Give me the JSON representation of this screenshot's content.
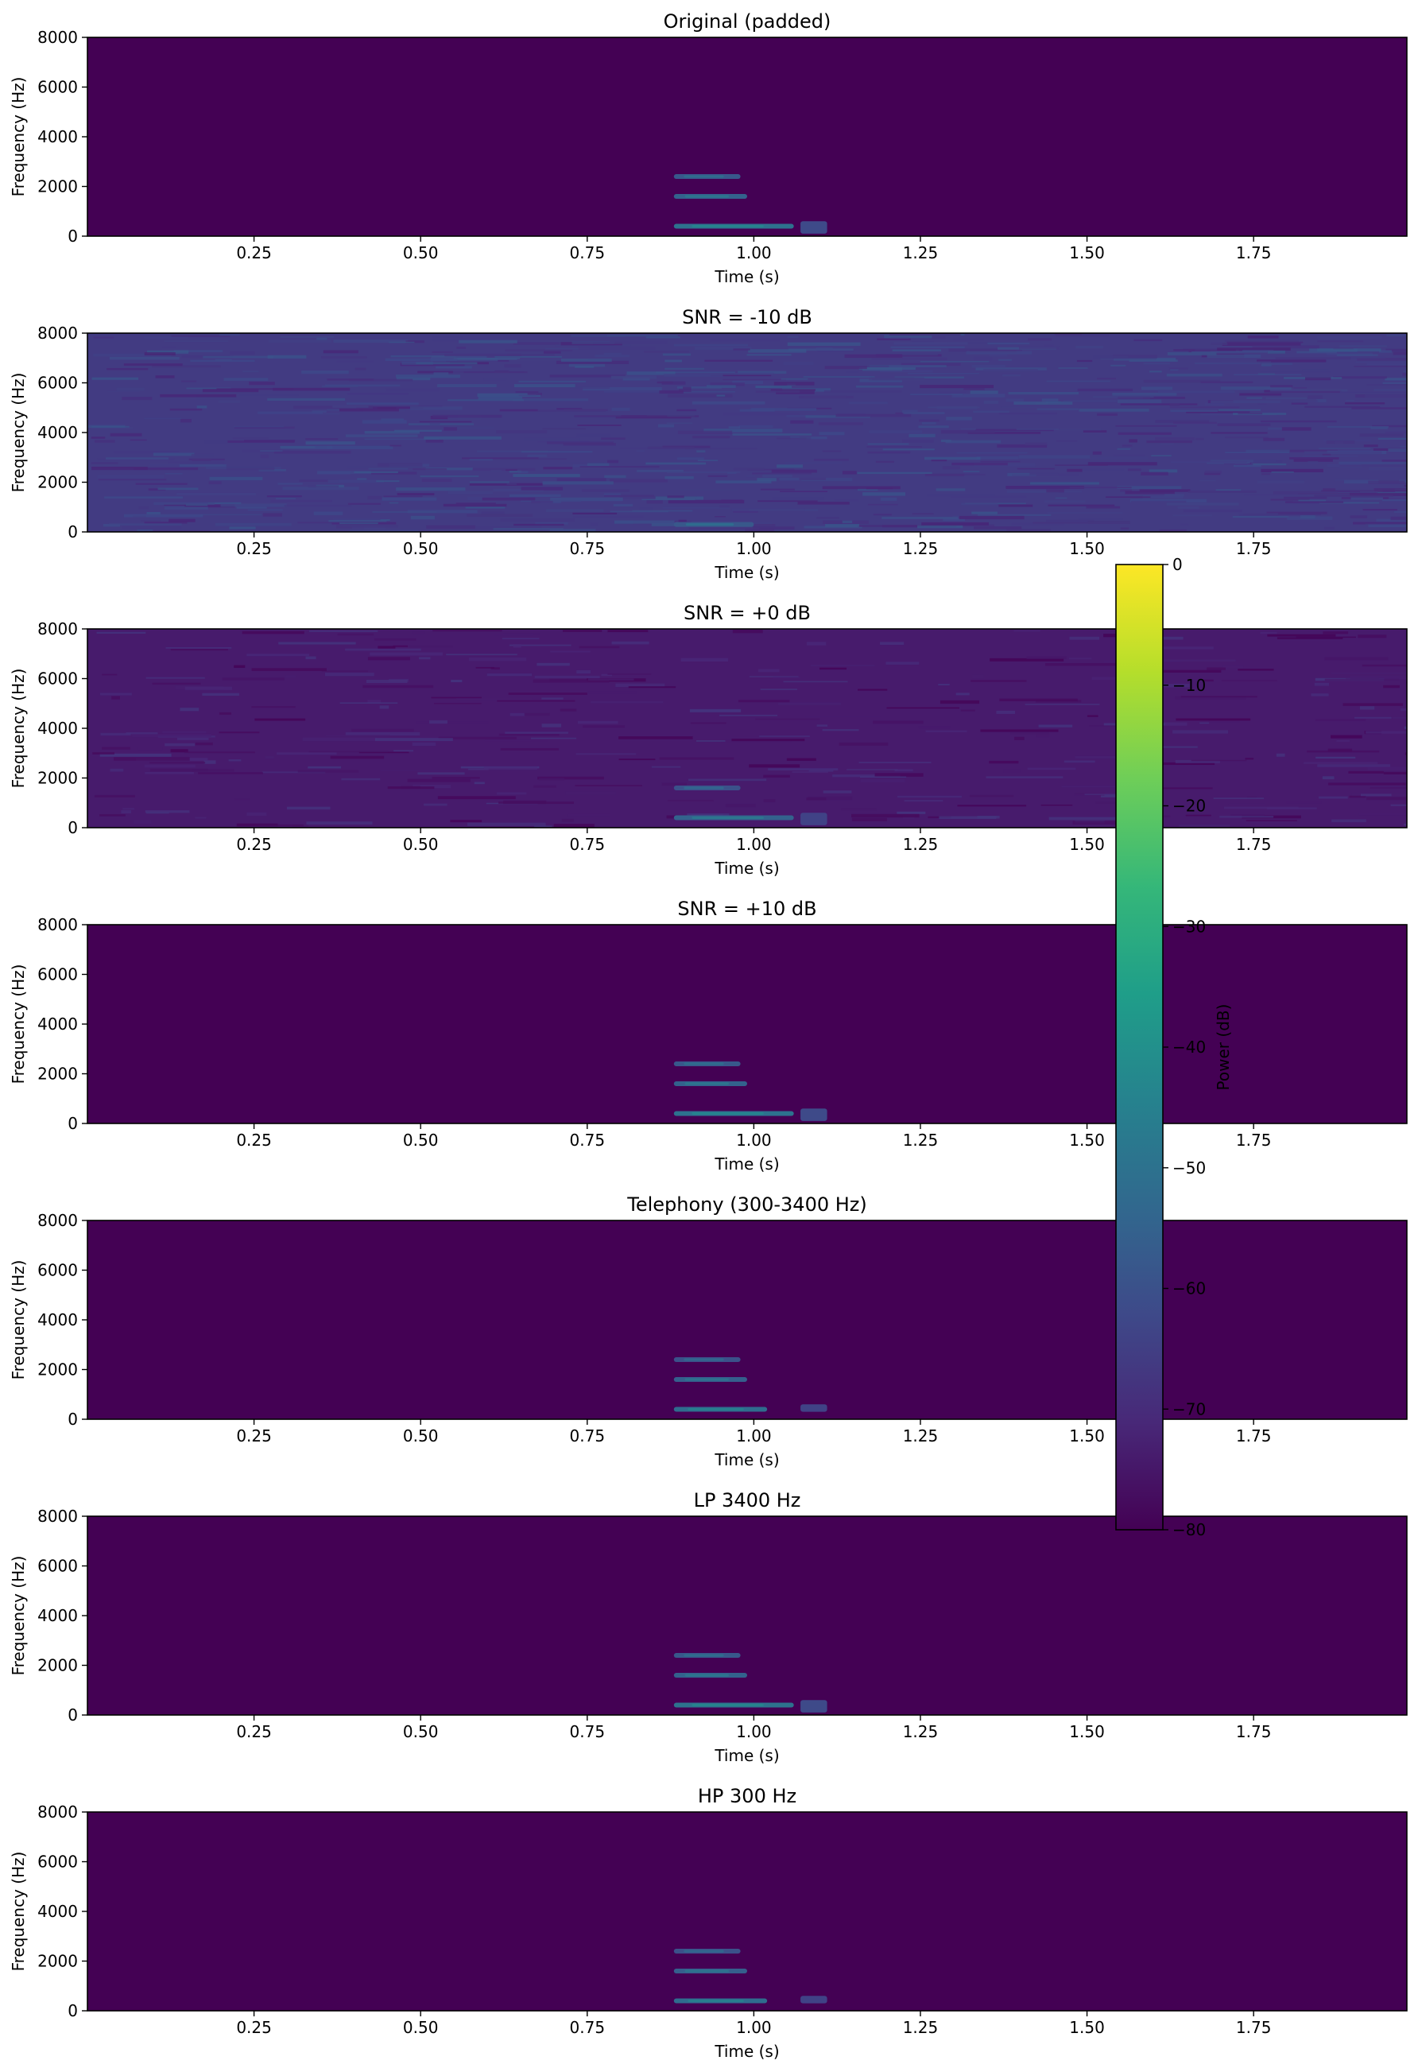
{
  "chart_data": {
    "type": "heatmap",
    "figure_kind": "spectrogram stack",
    "colormap": "viridis",
    "colors": {
      "viridis": [
        "#440154",
        "#482878",
        "#3e4989",
        "#31688e",
        "#26828e",
        "#1f9e89",
        "#35b779",
        "#6ece58",
        "#b5de2b",
        "#fde725"
      ],
      "background": "#440154"
    },
    "x_axis": {
      "label": "Time (s)",
      "range": [
        0.0,
        1.98
      ],
      "ticks": [
        0.25,
        0.5,
        0.75,
        1.0,
        1.25,
        1.5,
        1.75
      ],
      "tick_labels": [
        "0.25",
        "0.50",
        "0.75",
        "1.00",
        "1.25",
        "1.50",
        "1.75"
      ]
    },
    "y_axis": {
      "label": "Frequency (Hz)",
      "range": [
        0,
        8000
      ],
      "ticks": [
        0,
        2000,
        4000,
        6000,
        8000
      ],
      "tick_labels": [
        "0",
        "2000",
        "4000",
        "6000",
        "8000"
      ]
    },
    "colorbar": {
      "label": "Power (dB)",
      "range": [
        -80,
        0
      ],
      "ticks": [
        0,
        -10,
        -20,
        -30,
        -40,
        -50,
        -60,
        -70,
        -80
      ],
      "tick_labels": [
        "0",
        "−10",
        "−20",
        "−30",
        "−40",
        "−50",
        "−60",
        "−70",
        "−80"
      ]
    },
    "panels": [
      {
        "title": "Original (padded)",
        "noise_level_db": -80,
        "features": [
          {
            "kind": "harmonic",
            "t": [
              0.88,
              0.98
            ],
            "f": 2400,
            "level_db": -58
          },
          {
            "kind": "harmonic",
            "t": [
              0.88,
              0.99
            ],
            "f": 1600,
            "level_db": -55
          },
          {
            "kind": "harmonic",
            "t": [
              0.88,
              1.06
            ],
            "f": 400,
            "level_db": -50
          },
          {
            "kind": "burst",
            "t": [
              1.07,
              1.11
            ],
            "f": [
              100,
              600
            ],
            "level_db": -62
          }
        ]
      },
      {
        "title": "SNR = -10 dB",
        "noise_level_db": -66,
        "features": [
          {
            "kind": "harmonic",
            "t": [
              0.88,
              1.0
            ],
            "f": 300,
            "level_db": -58
          }
        ]
      },
      {
        "title": "SNR = +0 dB",
        "noise_level_db": -74,
        "features": [
          {
            "kind": "harmonic",
            "t": [
              0.88,
              0.98
            ],
            "f": 1600,
            "level_db": -60
          },
          {
            "kind": "harmonic",
            "t": [
              0.88,
              1.06
            ],
            "f": 400,
            "level_db": -55
          },
          {
            "kind": "burst",
            "t": [
              1.07,
              1.11
            ],
            "f": [
              100,
              600
            ],
            "level_db": -64
          }
        ]
      },
      {
        "title": "SNR = +10 dB",
        "noise_level_db": -80,
        "features": [
          {
            "kind": "harmonic",
            "t": [
              0.88,
              0.98
            ],
            "f": 2400,
            "level_db": -58
          },
          {
            "kind": "harmonic",
            "t": [
              0.88,
              0.99
            ],
            "f": 1600,
            "level_db": -55
          },
          {
            "kind": "harmonic",
            "t": [
              0.88,
              1.06
            ],
            "f": 400,
            "level_db": -50
          },
          {
            "kind": "burst",
            "t": [
              1.07,
              1.11
            ],
            "f": [
              100,
              600
            ],
            "level_db": -62
          }
        ]
      },
      {
        "title": "Telephony (300-3400 Hz)",
        "noise_level_db": -80,
        "features": [
          {
            "kind": "harmonic",
            "t": [
              0.88,
              0.98
            ],
            "f": 2400,
            "level_db": -60
          },
          {
            "kind": "harmonic",
            "t": [
              0.88,
              0.99
            ],
            "f": 1600,
            "level_db": -56
          },
          {
            "kind": "harmonic",
            "t": [
              0.88,
              1.02
            ],
            "f": 400,
            "level_db": -52
          },
          {
            "kind": "burst",
            "t": [
              1.07,
              1.11
            ],
            "f": [
              300,
              600
            ],
            "level_db": -64
          }
        ]
      },
      {
        "title": "LP 3400 Hz",
        "noise_level_db": -80,
        "features": [
          {
            "kind": "harmonic",
            "t": [
              0.88,
              0.98
            ],
            "f": 2400,
            "level_db": -58
          },
          {
            "kind": "harmonic",
            "t": [
              0.88,
              0.99
            ],
            "f": 1600,
            "level_db": -55
          },
          {
            "kind": "harmonic",
            "t": [
              0.88,
              1.06
            ],
            "f": 400,
            "level_db": -50
          },
          {
            "kind": "burst",
            "t": [
              1.07,
              1.11
            ],
            "f": [
              100,
              600
            ],
            "level_db": -62
          }
        ]
      },
      {
        "title": "HP 300 Hz",
        "noise_level_db": -80,
        "features": [
          {
            "kind": "harmonic",
            "t": [
              0.88,
              0.98
            ],
            "f": 2400,
            "level_db": -60
          },
          {
            "kind": "harmonic",
            "t": [
              0.88,
              0.99
            ],
            "f": 1600,
            "level_db": -56
          },
          {
            "kind": "harmonic",
            "t": [
              0.88,
              1.02
            ],
            "f": 400,
            "level_db": -52
          },
          {
            "kind": "burst",
            "t": [
              1.07,
              1.11
            ],
            "f": [
              300,
              600
            ],
            "level_db": -64
          }
        ]
      }
    ]
  }
}
